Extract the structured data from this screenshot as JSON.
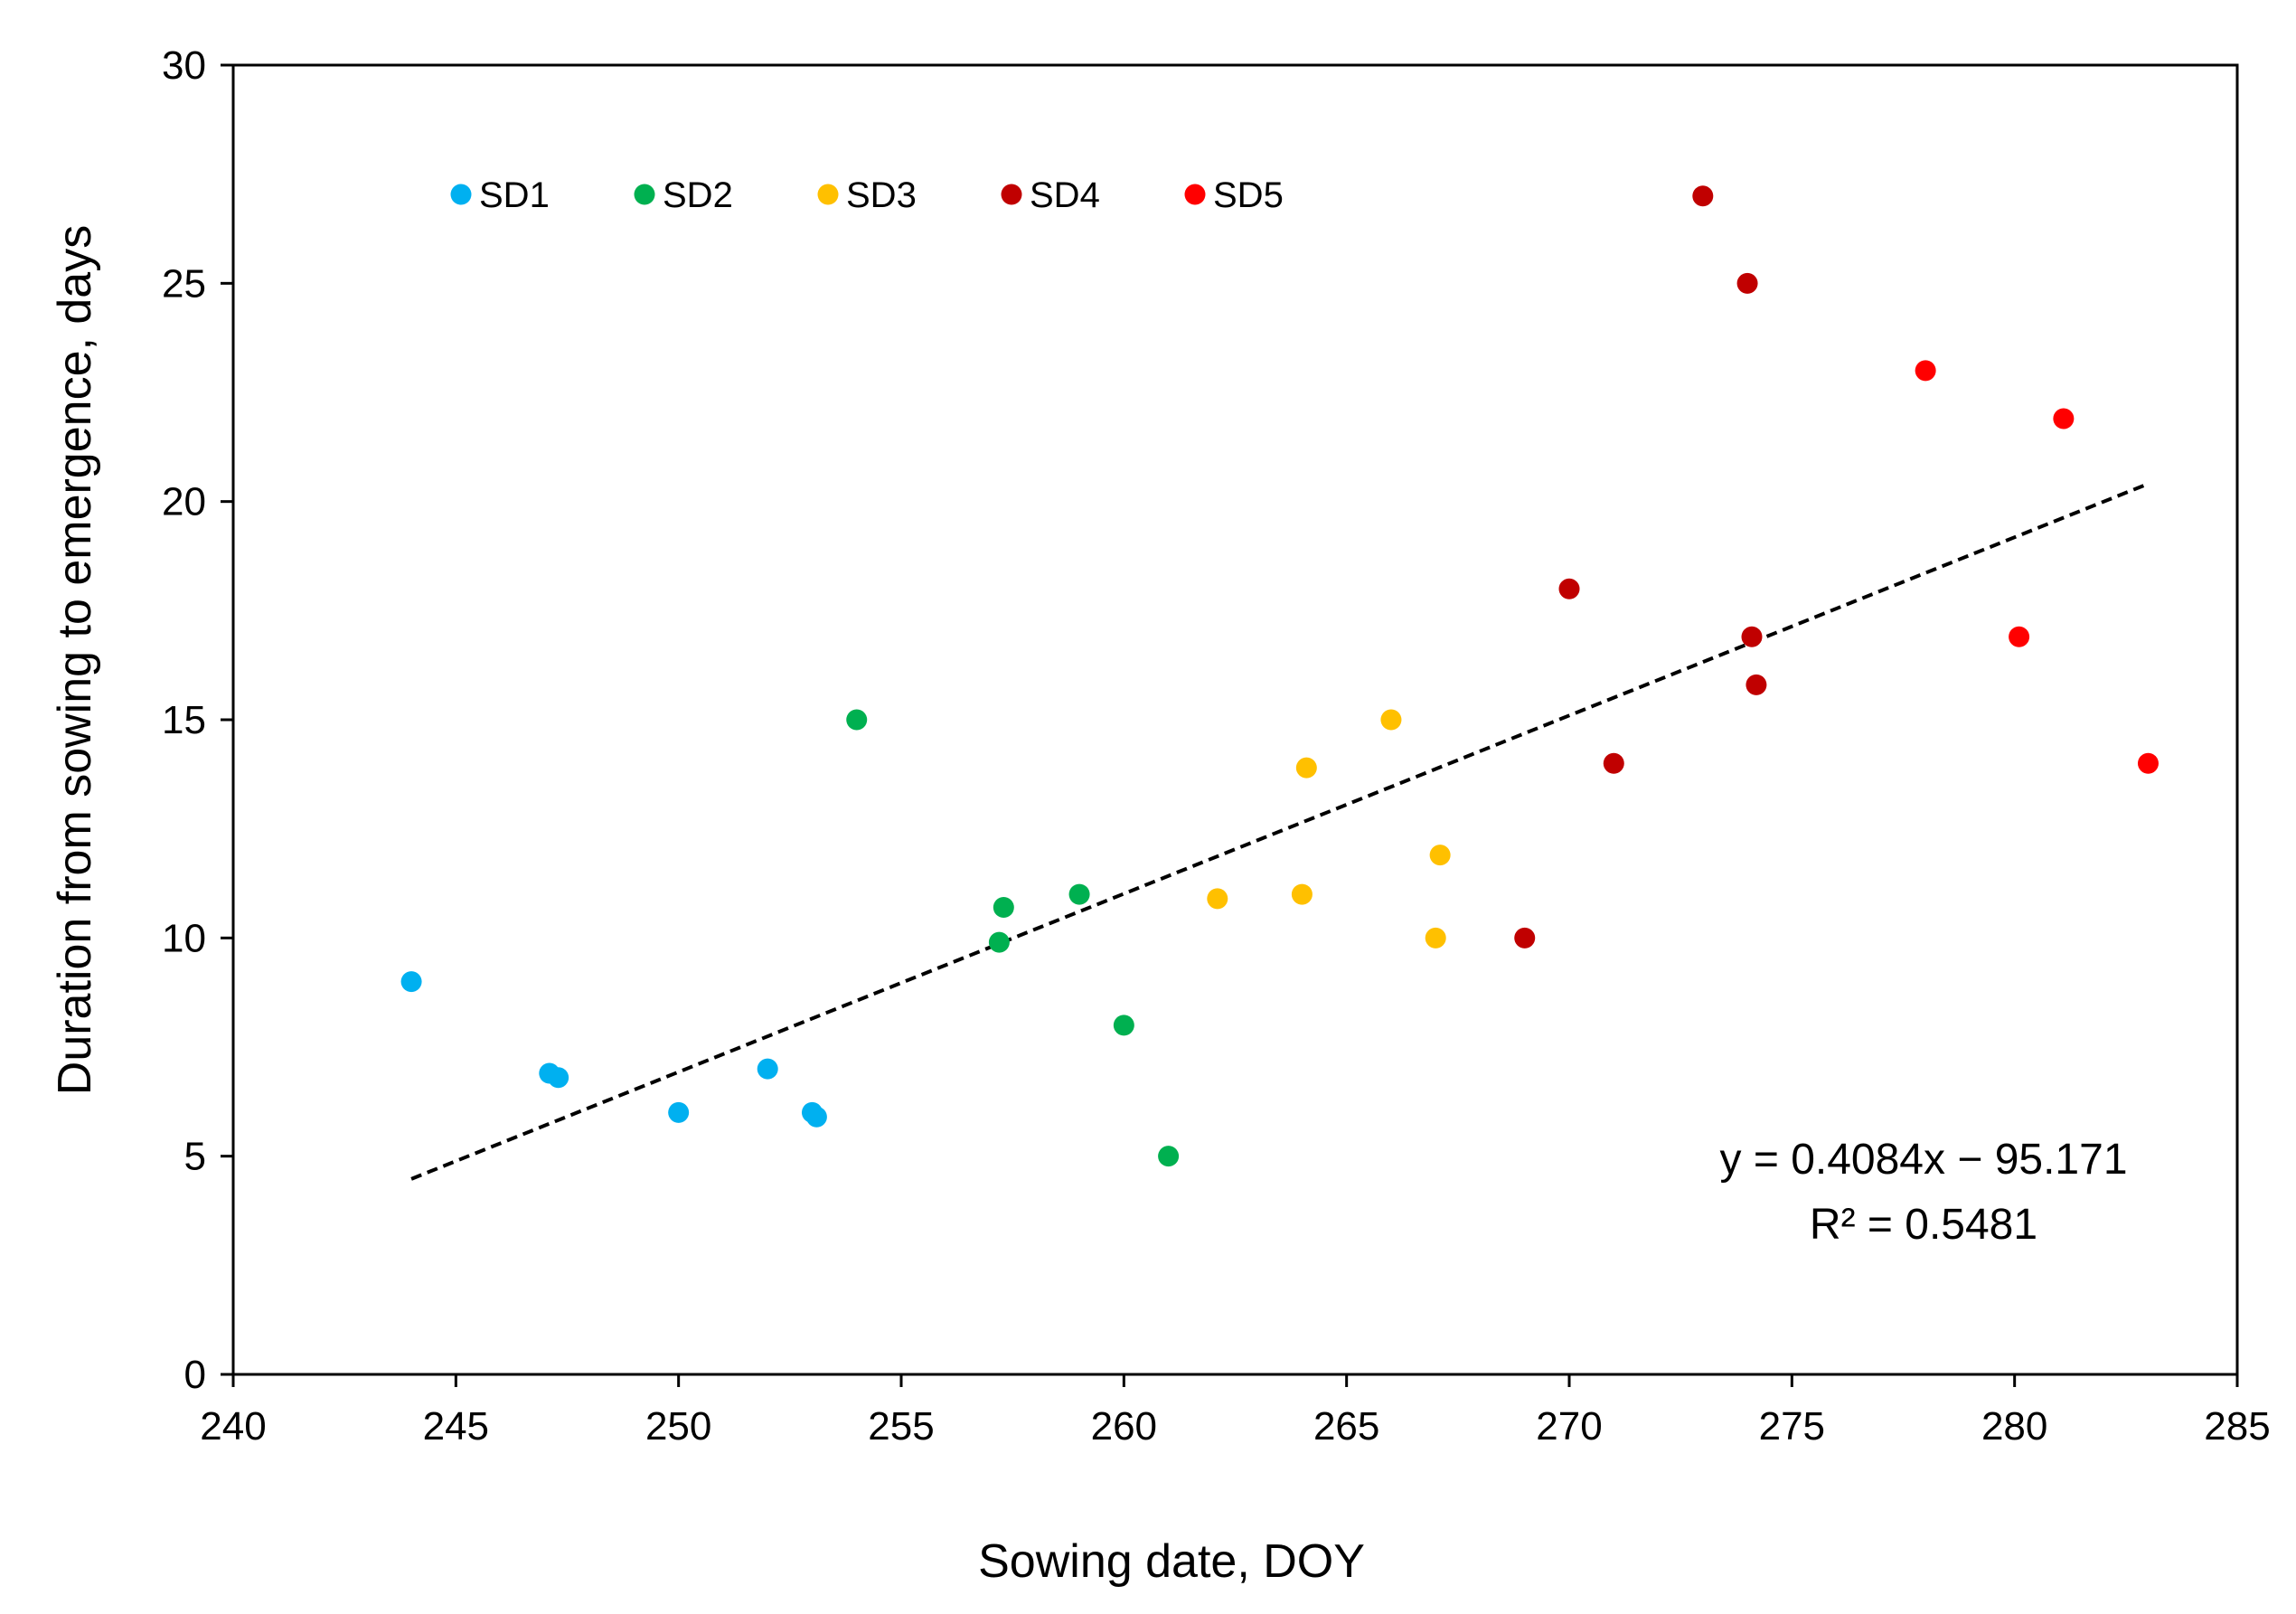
{
  "chart_data": {
    "type": "scatter",
    "title": "",
    "xlabel": "Sowing date, DOY",
    "ylabel": "Duration from sowing to emergence,  days",
    "xlim": [
      240,
      285
    ],
    "ylim": [
      0,
      30
    ],
    "xticks": [
      240,
      245,
      250,
      255,
      260,
      265,
      270,
      275,
      280,
      285
    ],
    "yticks": [
      0,
      5,
      10,
      15,
      20,
      25,
      30
    ],
    "grid": false,
    "legend_position": "top-left",
    "series": [
      {
        "name": "SD1",
        "color": "#00b0f0",
        "points": [
          [
            244,
            9
          ],
          [
            247.1,
            6.9
          ],
          [
            247.3,
            6.8
          ],
          [
            250,
            6
          ],
          [
            252,
            7
          ],
          [
            253,
            6
          ],
          [
            253.1,
            5.9
          ]
        ]
      },
      {
        "name": "SD2",
        "color": "#00b050",
        "points": [
          [
            254,
            15
          ],
          [
            257.2,
            9.9
          ],
          [
            257.3,
            10.7
          ],
          [
            259,
            11
          ],
          [
            260,
            8
          ],
          [
            261,
            5
          ]
        ]
      },
      {
        "name": "SD3",
        "color": "#ffc000",
        "points": [
          [
            262.1,
            10.9
          ],
          [
            264,
            11
          ],
          [
            264.1,
            13.9
          ],
          [
            266,
            15
          ],
          [
            267,
            10
          ],
          [
            267.1,
            11.9
          ]
        ]
      },
      {
        "name": "SD4",
        "color": "#c00000",
        "points": [
          [
            269,
            10
          ],
          [
            270,
            18
          ],
          [
            271,
            14
          ],
          [
            273,
            27
          ],
          [
            274,
            25
          ],
          [
            274.1,
            16.9
          ],
          [
            274.2,
            15.8
          ]
        ]
      },
      {
        "name": "SD5",
        "color": "#ff0000",
        "points": [
          [
            278,
            23
          ],
          [
            280.1,
            16.9
          ],
          [
            281.1,
            21.9
          ],
          [
            283,
            14
          ]
        ]
      }
    ],
    "trendline": {
      "type": "linear",
      "slope": 0.4084,
      "intercept": -95.171,
      "x_range": [
        244,
        283
      ],
      "color": "#000000",
      "style": "dashed"
    },
    "annotations": {
      "equation": "y = 0.4084x  − 95.171",
      "r_squared": "R² = 0.5481"
    }
  }
}
